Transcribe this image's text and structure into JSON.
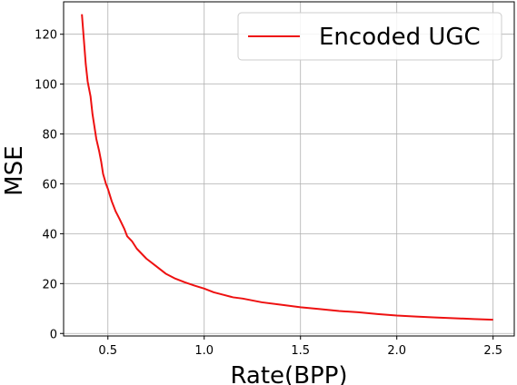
{
  "chart_data": {
    "type": "line",
    "title": "",
    "xlabel": "Rate(BPP)",
    "ylabel": "MSE",
    "xlim": [
      0.27,
      2.61
    ],
    "ylim": [
      -1,
      133
    ],
    "xticks": [
      0.5,
      1.0,
      1.5,
      2.0,
      2.5
    ],
    "xtick_labels": [
      "0.5",
      "1.0",
      "1.5",
      "2.0",
      "2.5"
    ],
    "yticks": [
      0,
      20,
      40,
      60,
      80,
      100,
      120
    ],
    "ytick_labels": [
      "0",
      "20",
      "40",
      "60",
      "80",
      "100",
      "120"
    ],
    "grid": true,
    "legend_position": "top-right",
    "series": [
      {
        "name": "Encoded UGC",
        "color": "#ee1111",
        "x": [
          0.365,
          0.375,
          0.385,
          0.395,
          0.41,
          0.42,
          0.44,
          0.455,
          0.465,
          0.475,
          0.49,
          0.5,
          0.52,
          0.54,
          0.56,
          0.585,
          0.6,
          0.625,
          0.65,
          0.7,
          0.75,
          0.8,
          0.85,
          0.9,
          0.95,
          1.0,
          1.05,
          1.1,
          1.15,
          1.2,
          1.3,
          1.4,
          1.5,
          1.6,
          1.7,
          1.8,
          1.9,
          2.0,
          2.1,
          2.2,
          2.3,
          2.4,
          2.5
        ],
        "y": [
          128,
          118,
          108,
          101,
          95,
          88,
          78,
          73,
          69,
          64,
          60,
          58,
          53,
          49,
          46,
          42,
          39,
          37,
          34,
          30,
          27,
          24,
          22,
          20.5,
          19.2,
          18,
          16.5,
          15.5,
          14.5,
          14,
          12.5,
          11.5,
          10.5,
          9.8,
          9,
          8.5,
          7.8,
          7.2,
          6.8,
          6.4,
          6.1,
          5.8,
          5.5
        ]
      }
    ]
  }
}
